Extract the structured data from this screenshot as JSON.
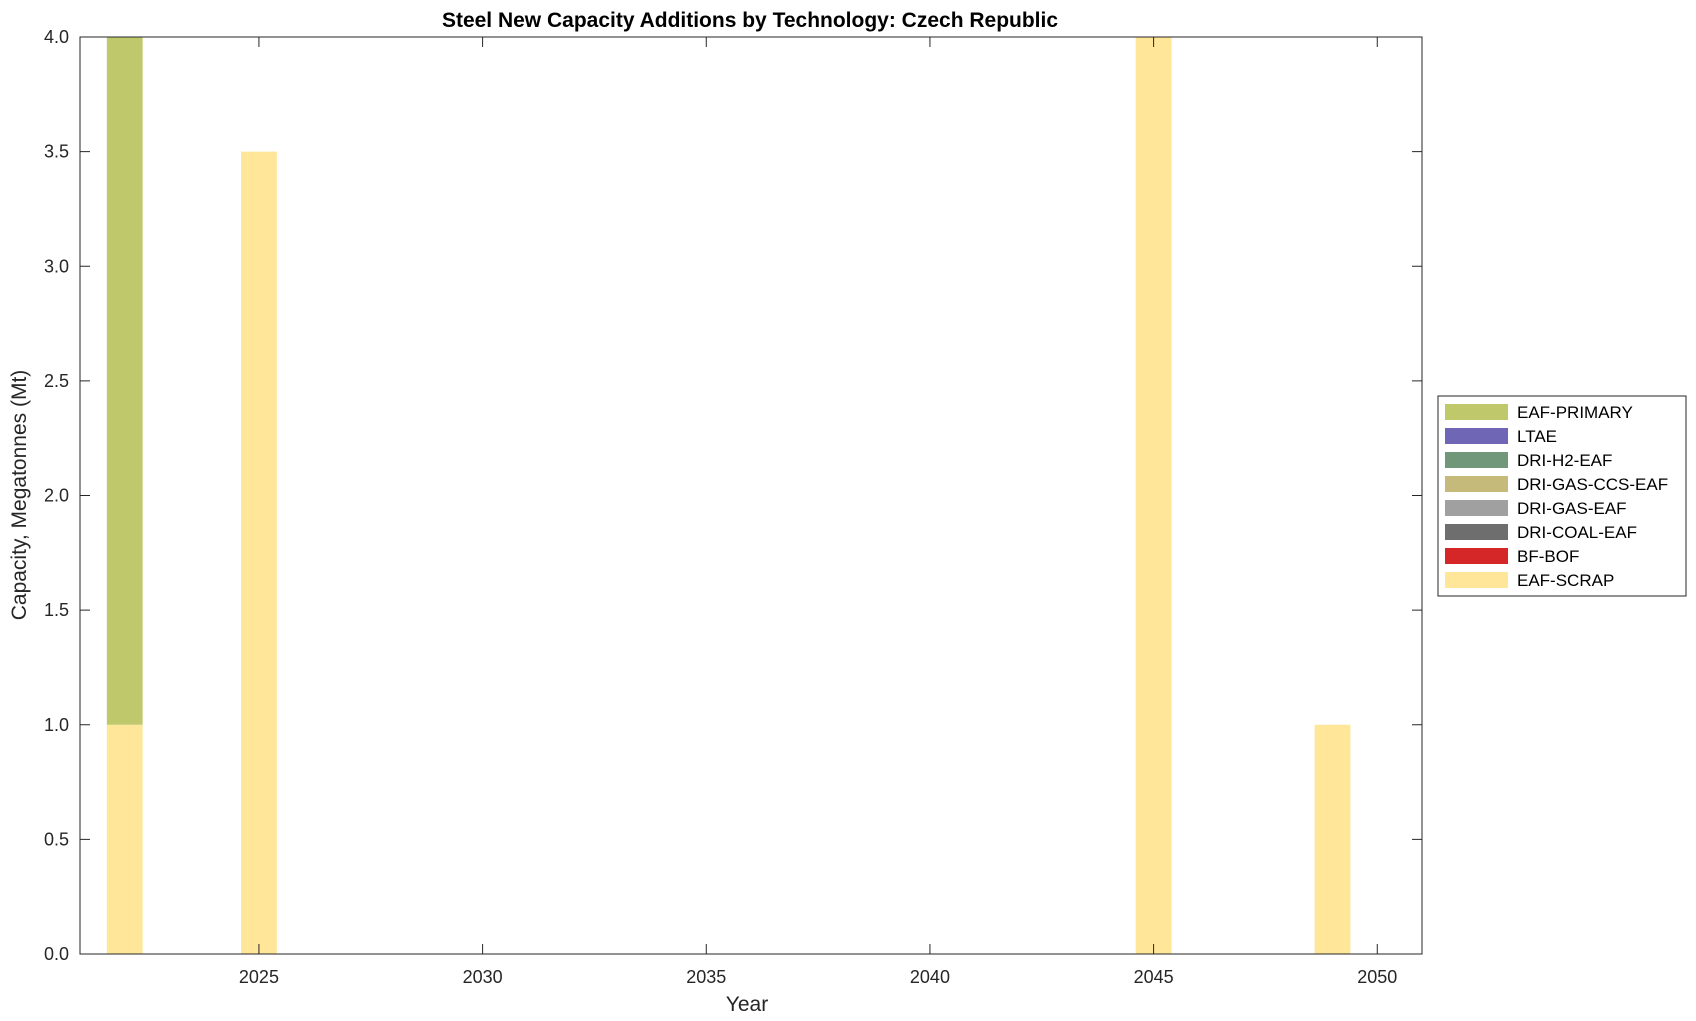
{
  "chart_data": {
    "type": "bar",
    "stacked": true,
    "title": "Steel New Capacity Additions by Technology: Czech Republic",
    "xlabel": "Year",
    "ylabel": "Capacity, Megatonnes (Mt)",
    "xlim": [
      2021,
      2051
    ],
    "ylim": [
      0,
      4
    ],
    "xticks": [
      2025,
      2030,
      2035,
      2040,
      2045,
      2050
    ],
    "yticks": [
      "0.0",
      "0.5",
      "1.0",
      "1.5",
      "2.0",
      "2.5",
      "3.0",
      "3.5",
      "4.0"
    ],
    "grid": false,
    "legend_position": "right",
    "x": [
      2022,
      2025,
      2045,
      2049
    ],
    "series": [
      {
        "name": "EAF-SCRAP",
        "color": "#FFE699",
        "values": [
          1,
          3.5,
          4,
          1
        ]
      },
      {
        "name": "BF-BOF",
        "color": "#D62728",
        "values": [
          0,
          0,
          0,
          0
        ]
      },
      {
        "name": "DRI-COAL-EAF",
        "color": "#6E6E6E",
        "values": [
          0,
          0,
          0,
          0
        ]
      },
      {
        "name": "DRI-GAS-EAF",
        "color": "#A0A0A0",
        "values": [
          0,
          0,
          0,
          0
        ]
      },
      {
        "name": "DRI-GAS-CCS-EAF",
        "color": "#C5BA7A",
        "values": [
          0,
          0,
          0,
          0
        ]
      },
      {
        "name": "DRI-H2-EAF",
        "color": "#71977A",
        "values": [
          0,
          0,
          0,
          0
        ]
      },
      {
        "name": "LTAE",
        "color": "#7066B6",
        "values": [
          0,
          0,
          0,
          0
        ]
      },
      {
        "name": "EAF-PRIMARY",
        "color": "#BFC96C",
        "values": [
          3,
          0,
          0,
          0
        ]
      }
    ],
    "legend_order": [
      "EAF-PRIMARY",
      "LTAE",
      "DRI-H2-EAF",
      "DRI-GAS-CCS-EAF",
      "DRI-GAS-EAF",
      "DRI-COAL-EAF",
      "BF-BOF",
      "EAF-SCRAP"
    ]
  }
}
